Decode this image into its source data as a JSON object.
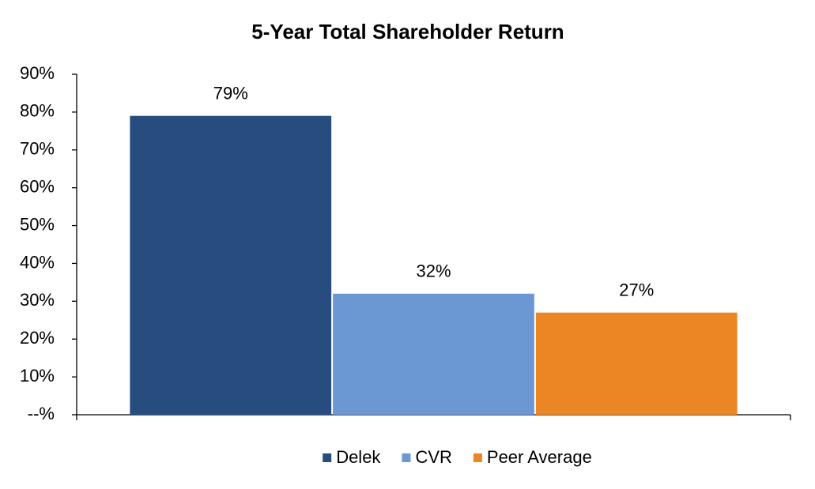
{
  "chart_data": {
    "type": "bar",
    "title": "5-Year Total Shareholder Return",
    "categories": [
      null
    ],
    "series": [
      {
        "name": "Delek",
        "color": "#264d7e",
        "values": [
          79
        ],
        "value_labels": [
          "79%"
        ]
      },
      {
        "name": "CVR",
        "color": "#6b98d3",
        "values": [
          32
        ],
        "value_labels": [
          "32%"
        ]
      },
      {
        "name": "Peer Average",
        "color": "#eb8625",
        "values": [
          27
        ],
        "value_labels": [
          "27%"
        ]
      }
    ],
    "ylim": [
      0,
      90
    ],
    "yticks": [
      {
        "value": 0,
        "label": "--%"
      },
      {
        "value": 10,
        "label": "10%"
      },
      {
        "value": 20,
        "label": "20%"
      },
      {
        "value": 30,
        "label": "30%"
      },
      {
        "value": 40,
        "label": "40%"
      },
      {
        "value": 50,
        "label": "50%"
      },
      {
        "value": 60,
        "label": "60%"
      },
      {
        "value": 70,
        "label": "70%"
      },
      {
        "value": 80,
        "label": "80%"
      },
      {
        "value": 90,
        "label": "90%"
      }
    ],
    "grid": false,
    "legend": "bottom"
  }
}
